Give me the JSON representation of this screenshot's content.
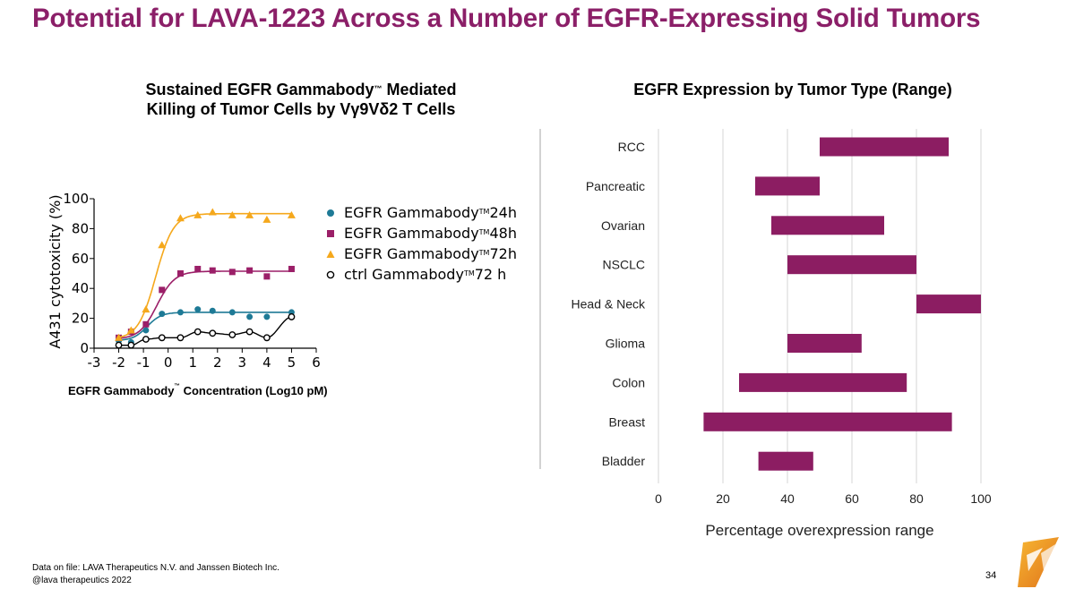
{
  "slide": {
    "title": "Potential for LAVA-1223 Across a Number of EGFR-Expressing Solid Tumors",
    "footer_source": "Data on file: LAVA Therapeutics N.V. and Janssen Biotech Inc.",
    "footer_handle": "@lava therapeutics 2022",
    "page_number": "34"
  },
  "colors": {
    "title": "#8B1F68",
    "series_24h": "#1E7A96",
    "series_48h": "#9B1F68",
    "series_72h": "#F5A81C",
    "series_ctrl": "#000000",
    "bar": "#8C1D62",
    "logo_orange": "#E9831F"
  },
  "chart_data": [
    {
      "type": "scatter",
      "title_line1": "Sustained EGFR Gammabody",
      "title_tm": "™",
      "title_line1_end": " Mediated",
      "title_line2": "Killing of Tumor Cells by Vγ9Vδ2 T Cells",
      "xlabel": "EGFR Gammabody",
      "xlabel_tm": "™",
      "xlabel_end": " Concentration (Log10 pM)",
      "ylabel": "A431 cytotoxicity (%)",
      "xlim": [
        -3,
        6
      ],
      "ylim": [
        0,
        100
      ],
      "x_ticks": [
        "-3",
        "-2",
        "-1",
        "0",
        "1",
        "2",
        "3",
        "4",
        "5",
        "6"
      ],
      "y_ticks": [
        "0",
        "20",
        "40",
        "60",
        "80",
        "100"
      ],
      "legend_placement": "right",
      "series": [
        {
          "name": "EGFR Gammabody",
          "name_tm": "TM",
          "name_end": " 24h",
          "marker": "circle",
          "color_key": "series_24h",
          "x": [
            -2,
            -1.5,
            -0.9,
            -0.25,
            0.5,
            1.2,
            1.8,
            2.6,
            3.3,
            4.0,
            5.0
          ],
          "y": [
            5,
            4,
            12,
            23,
            24,
            26,
            25,
            24,
            21,
            21,
            24
          ],
          "fit": {
            "bottom": 5,
            "top": 24,
            "mid": -0.85,
            "slope": 3.5
          }
        },
        {
          "name": "EGFR Gammabody",
          "name_tm": "TM",
          "name_end": " 48h",
          "marker": "square",
          "color_key": "series_48h",
          "x": [
            -2,
            -1.5,
            -0.9,
            -0.25,
            0.5,
            1.2,
            1.8,
            2.6,
            3.3,
            4.0,
            5.0
          ],
          "y": [
            7,
            11,
            16,
            39,
            50,
            53,
            52,
            51,
            52,
            48,
            53
          ],
          "fit": {
            "bottom": 6,
            "top": 51.5,
            "mid": -0.45,
            "slope": 2.8
          }
        },
        {
          "name": "EGFR Gammabody",
          "name_tm": "TM",
          "name_end": " 72h",
          "marker": "triangle",
          "color_key": "series_72h",
          "x": [
            -2,
            -1.5,
            -0.9,
            -0.25,
            0.5,
            1.2,
            1.8,
            2.6,
            3.3,
            4.0,
            5.0
          ],
          "y": [
            7,
            12,
            26,
            69,
            87,
            89,
            91,
            89,
            89,
            86,
            89
          ],
          "fit": {
            "bottom": 6,
            "top": 90,
            "mid": -0.5,
            "slope": 2.8
          }
        },
        {
          "name": "ctrl Gammabody",
          "name_tm": "TM",
          "name_end": " 72 h",
          "marker": "open-circle",
          "color_key": "series_ctrl",
          "x": [
            -2,
            -1.5,
            -0.9,
            -0.25,
            0.5,
            1.2,
            1.8,
            2.6,
            3.3,
            4.0,
            5.0
          ],
          "y": [
            2,
            2,
            6,
            7,
            7,
            11,
            10,
            9,
            11,
            7,
            21
          ]
        }
      ]
    },
    {
      "type": "bar",
      "orientation": "horizontal",
      "title": "EGFR Expression by Tumor Type (Range)",
      "xlabel": "Percentage overexpression range",
      "xlim": [
        0,
        100
      ],
      "x_ticks": [
        "0",
        "20",
        "40",
        "60",
        "80",
        "100"
      ],
      "grid": true,
      "categories": [
        "RCC",
        "Pancreatic",
        "Ovarian",
        "NSCLC",
        "Head & Neck",
        "Glioma",
        "Colon",
        "Breast",
        "Bladder"
      ],
      "ranges": [
        [
          50,
          90
        ],
        [
          30,
          50
        ],
        [
          35,
          70
        ],
        [
          40,
          80
        ],
        [
          80,
          100
        ],
        [
          40,
          63
        ],
        [
          25,
          77
        ],
        [
          14,
          91
        ],
        [
          31,
          48
        ]
      ]
    }
  ]
}
